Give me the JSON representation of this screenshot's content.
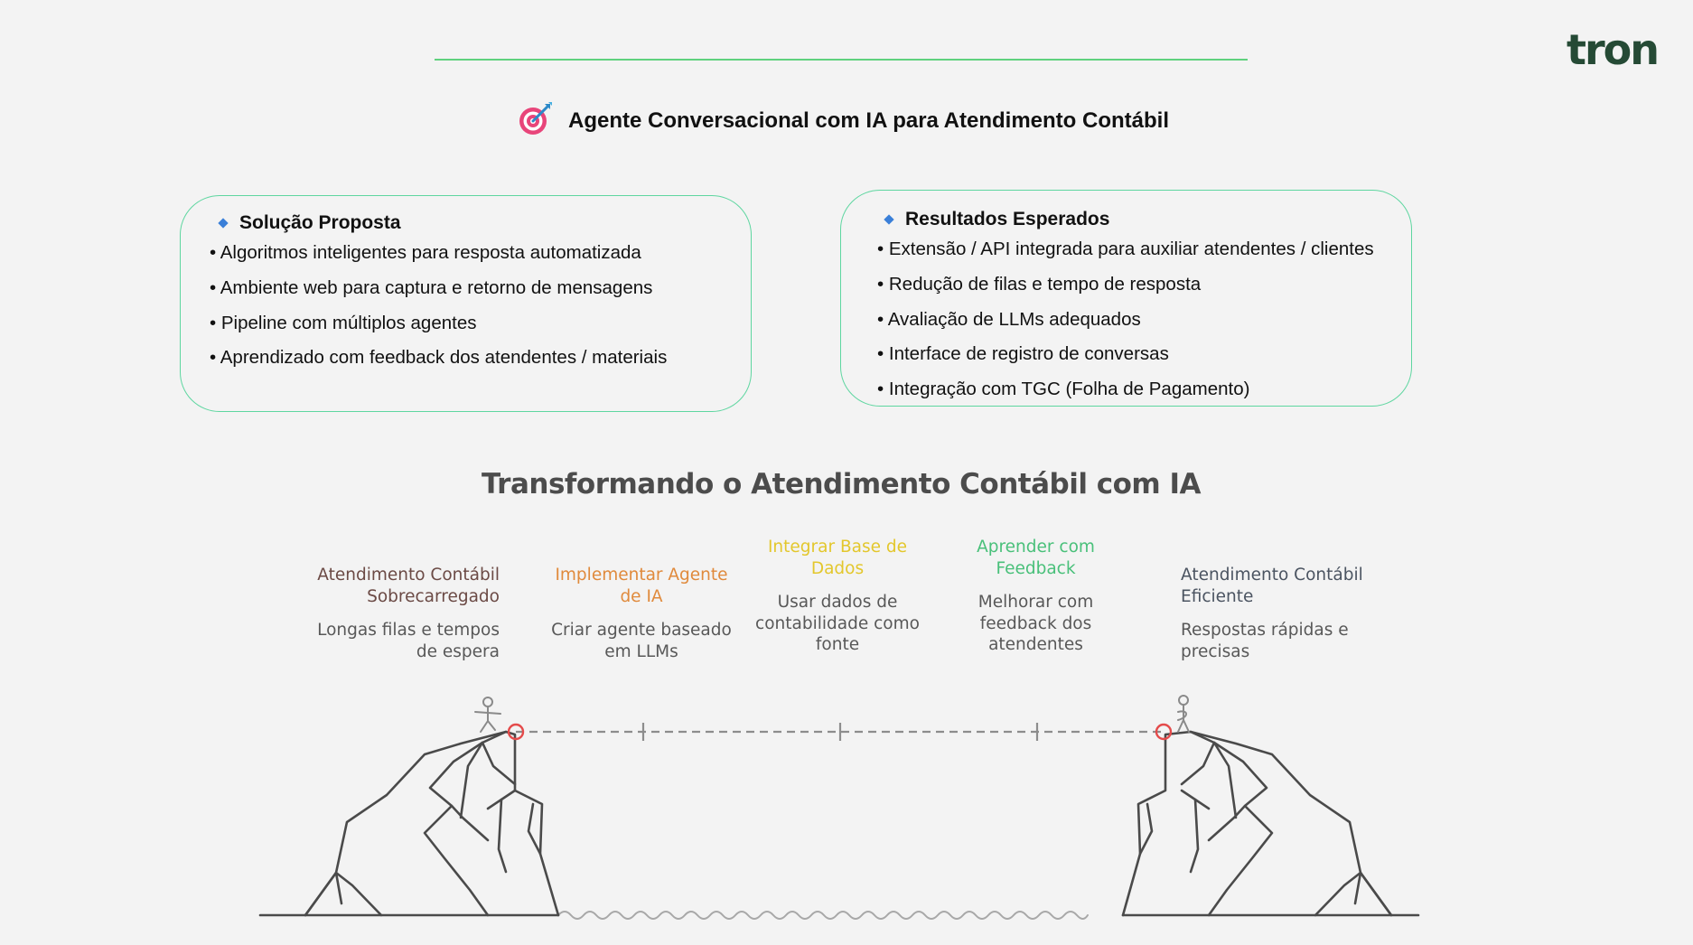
{
  "logo": {
    "text": "tron",
    "color": "#254a35"
  },
  "header": {
    "title": "Agente Conversacional com IA para Atendimento Contábil",
    "icon": "target-icon"
  },
  "solution": {
    "title": "Solução Proposta",
    "items": [
      "• Algoritmos inteligentes para resposta automatizada",
      "• Ambiente web para captura e retorno de mensagens",
      "• Pipeline com múltiplos agentes",
      "• Aprendizado com feedback dos atendentes / materiais"
    ]
  },
  "results": {
    "title": "Resultados Esperados",
    "items": [
      "• Extensão / API integrada para auxiliar atendentes / clientes",
      "• Redução de filas e tempo de resposta",
      "• Avaliação de LLMs adequados",
      "• Interface de registro de conversas",
      "• Integração com TGC (Folha de Pagamento)"
    ]
  },
  "diagram": {
    "title": "Transformando o Atendimento Contábil com IA",
    "stages": [
      {
        "label": "Atendimento Contábil Sobrecarregado",
        "desc": "Longas filas e tempos de espera",
        "color": "#6b4a45"
      },
      {
        "label": "Implementar Agente de IA",
        "desc": "Criar agente baseado em LLMs",
        "color": "#e08a3c"
      },
      {
        "label": "Integrar Base de Dados",
        "desc": "Usar dados de contabilidade como fonte",
        "color": "#e3c72c"
      },
      {
        "label": "Aprender com Feedback",
        "desc": "Melhorar com feedback dos atendentes",
        "color": "#49c07a"
      },
      {
        "label": "Atendimento Contábil Eficiente",
        "desc": "Respostas rápidas e precisas",
        "color": "#4b5461"
      }
    ]
  },
  "colors": {
    "accent": "#5fd17e",
    "card_border": "#5ed6a0",
    "bullet_diamond": "#3a7fd8",
    "marker": "#e44b4b"
  }
}
